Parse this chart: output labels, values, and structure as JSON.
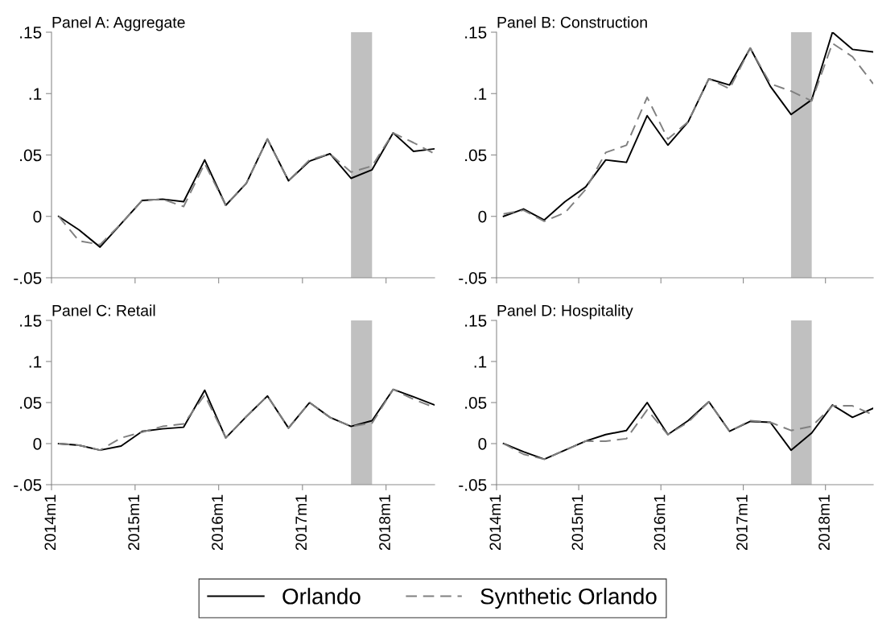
{
  "chart_data": [
    {
      "type": "line",
      "title": "Panel A: Aggregate",
      "tick_labels": "y",
      "x": [
        "2014-02",
        "2014-05",
        "2014-08",
        "2014-11",
        "2015-02",
        "2015-05",
        "2015-08",
        "2015-11",
        "2016-02",
        "2016-05",
        "2016-08",
        "2016-11",
        "2017-02",
        "2017-05",
        "2017-08",
        "2017-11",
        "2018-02",
        "2018-05",
        "2018-08"
      ],
      "series": [
        {
          "color": "#000000",
          "line_style": "solid",
          "values": [
            0,
            -0.011,
            -0.025,
            -0.006,
            0.013,
            0.014,
            0.012,
            0.046,
            0.009,
            0.027,
            0.063,
            0.029,
            0.045,
            0.051,
            0.031,
            0.038,
            0.068,
            0.053,
            0.055
          ]
        },
        {
          "color": "#808080",
          "line_style": "dashed",
          "values": [
            0,
            -0.02,
            -0.023,
            -0.006,
            0.013,
            0.014,
            0.008,
            0.043,
            0.009,
            0.027,
            0.063,
            0.029,
            0.046,
            0.051,
            0.036,
            0.041,
            0.068,
            0.06,
            0.051
          ]
        }
      ],
      "xlim": [
        "2014-01",
        "2018-08"
      ],
      "xticks": [
        {
          "value": "2014-01",
          "label": null
        },
        {
          "value": "2015-01",
          "label": null
        },
        {
          "value": "2016-01",
          "label": null
        },
        {
          "value": "2017-01",
          "label": null
        },
        {
          "value": "2018-01",
          "label": null
        }
      ],
      "ylim": [
        -0.05,
        0.15
      ],
      "yticks": [
        {
          "value": -0.05,
          "label": "-.05"
        },
        {
          "value": 0,
          "label": "0"
        },
        {
          "value": 0.05,
          "label": ".05"
        },
        {
          "value": 0.1,
          "label": ".1"
        },
        {
          "value": 0.15,
          "label": ".15"
        }
      ],
      "bands": [
        {
          "axis": "x",
          "from": "2017-08",
          "to": "2017-11",
          "color": "#c0c0c0"
        }
      ]
    },
    {
      "type": "line",
      "title": "Panel B: Construction",
      "tick_labels": "y",
      "x": [
        "2014-02",
        "2014-05",
        "2014-08",
        "2014-11",
        "2015-02",
        "2015-05",
        "2015-08",
        "2015-11",
        "2016-02",
        "2016-05",
        "2016-08",
        "2016-11",
        "2017-02",
        "2017-05",
        "2017-08",
        "2017-11",
        "2018-02",
        "2018-05",
        "2018-08"
      ],
      "series": [
        {
          "color": "#000000",
          "line_style": "solid",
          "values": [
            0,
            0.006,
            -0.003,
            0.012,
            0.024,
            0.046,
            0.044,
            0.082,
            0.058,
            0.077,
            0.112,
            0.107,
            0.137,
            0.106,
            0.083,
            0.095,
            0.15,
            0.136,
            0.134
          ]
        },
        {
          "color": "#808080",
          "line_style": "dashed",
          "values": [
            0.002,
            0.005,
            -0.004,
            0.003,
            0.022,
            0.052,
            0.058,
            0.097,
            0.063,
            0.077,
            0.112,
            0.104,
            0.137,
            0.108,
            0.102,
            0.094,
            0.141,
            0.13,
            0.108
          ]
        }
      ],
      "xlim": [
        "2014-01",
        "2018-08"
      ],
      "xticks": [
        {
          "value": "2014-01",
          "label": null
        },
        {
          "value": "2015-01",
          "label": null
        },
        {
          "value": "2016-01",
          "label": null
        },
        {
          "value": "2017-01",
          "label": null
        },
        {
          "value": "2018-01",
          "label": null
        }
      ],
      "ylim": [
        -0.05,
        0.15
      ],
      "yticks": [
        {
          "value": -0.05,
          "label": "-.05"
        },
        {
          "value": 0,
          "label": "0"
        },
        {
          "value": 0.05,
          "label": ".05"
        },
        {
          "value": 0.1,
          "label": ".1"
        },
        {
          "value": 0.15,
          "label": ".15"
        }
      ],
      "bands": [
        {
          "axis": "x",
          "from": "2017-08",
          "to": "2017-11",
          "color": "#c0c0c0"
        }
      ]
    },
    {
      "type": "line",
      "title": "Panel C: Retail",
      "x": [
        "2014-02",
        "2014-05",
        "2014-08",
        "2014-11",
        "2015-02",
        "2015-05",
        "2015-08",
        "2015-11",
        "2016-02",
        "2016-05",
        "2016-08",
        "2016-11",
        "2017-02",
        "2017-05",
        "2017-08",
        "2017-11",
        "2018-02",
        "2018-05",
        "2018-08"
      ],
      "series": [
        {
          "color": "#000000",
          "line_style": "solid",
          "values": [
            0,
            -0.002,
            -0.008,
            -0.003,
            0.015,
            0.018,
            0.02,
            0.065,
            0.007,
            0.033,
            0.058,
            0.019,
            0.05,
            0.032,
            0.021,
            0.028,
            0.066,
            0.057,
            0.047
          ]
        },
        {
          "color": "#808080",
          "line_style": "dashed",
          "values": [
            0,
            -0.002,
            -0.008,
            0.007,
            0.014,
            0.021,
            0.024,
            0.059,
            0.007,
            0.033,
            0.058,
            0.019,
            0.05,
            0.032,
            0.021,
            0.025,
            0.066,
            0.054,
            0.044
          ]
        }
      ],
      "xlim": [
        "2014-01",
        "2018-08"
      ],
      "xticks": [
        {
          "value": "2014-01",
          "label": "2014m1"
        },
        {
          "value": "2015-01",
          "label": "2015m1"
        },
        {
          "value": "2016-01",
          "label": "2016m1"
        },
        {
          "value": "2017-01",
          "label": "2017m1"
        },
        {
          "value": "2018-01",
          "label": "2018m1"
        }
      ],
      "ylim": [
        -0.05,
        0.15
      ],
      "yticks": [
        {
          "value": -0.05,
          "label": "-.05"
        },
        {
          "value": 0,
          "label": "0"
        },
        {
          "value": 0.05,
          "label": ".05"
        },
        {
          "value": 0.1,
          "label": ".1"
        },
        {
          "value": 0.15,
          "label": ".15"
        }
      ],
      "bands": [
        {
          "axis": "x",
          "from": "2017-08",
          "to": "2017-11",
          "color": "#c0c0c0"
        }
      ]
    },
    {
      "type": "line",
      "title": "Panel D: Hospitality",
      "legend": "bottom",
      "x": [
        "2014-02",
        "2014-05",
        "2014-08",
        "2014-11",
        "2015-02",
        "2015-05",
        "2015-08",
        "2015-11",
        "2016-02",
        "2016-05",
        "2016-08",
        "2016-11",
        "2017-02",
        "2017-05",
        "2017-08",
        "2017-11",
        "2018-02",
        "2018-05",
        "2018-08"
      ],
      "series": [
        {
          "name": "Orlando",
          "color": "#000000",
          "line_style": "solid",
          "values": [
            0,
            -0.01,
            -0.019,
            -0.008,
            0.003,
            0.011,
            0.016,
            0.05,
            0.011,
            0.028,
            0.051,
            0.015,
            0.027,
            0.026,
            -0.008,
            0.013,
            0.047,
            0.032,
            0.043
          ]
        },
        {
          "name": "Synthetic Orlando",
          "color": "#808080",
          "line_style": "dashed",
          "values": [
            0,
            -0.013,
            -0.019,
            -0.008,
            0.003,
            0.003,
            0.006,
            0.041,
            0.011,
            0.026,
            0.051,
            0.015,
            0.028,
            0.026,
            0.016,
            0.021,
            0.046,
            0.046,
            0.035
          ]
        }
      ],
      "xlim": [
        "2014-01",
        "2018-08"
      ],
      "xticks": [
        {
          "value": "2014-01",
          "label": "2014m1"
        },
        {
          "value": "2015-01",
          "label": "2015m1"
        },
        {
          "value": "2016-01",
          "label": "2016m1"
        },
        {
          "value": "2017-01",
          "label": "2017m1"
        },
        {
          "value": "2018-01",
          "label": "2018m1"
        }
      ],
      "ylim": [
        -0.05,
        0.15
      ],
      "yticks": [
        {
          "value": -0.05,
          "label": "-.05"
        },
        {
          "value": 0,
          "label": "0"
        },
        {
          "value": 0.05,
          "label": ".05"
        },
        {
          "value": 0.1,
          "label": ".1"
        },
        {
          "value": 0.15,
          "label": ".15"
        }
      ],
      "bands": [
        {
          "axis": "x",
          "from": "2017-08",
          "to": "2017-11",
          "color": "#c0c0c0"
        }
      ]
    }
  ]
}
